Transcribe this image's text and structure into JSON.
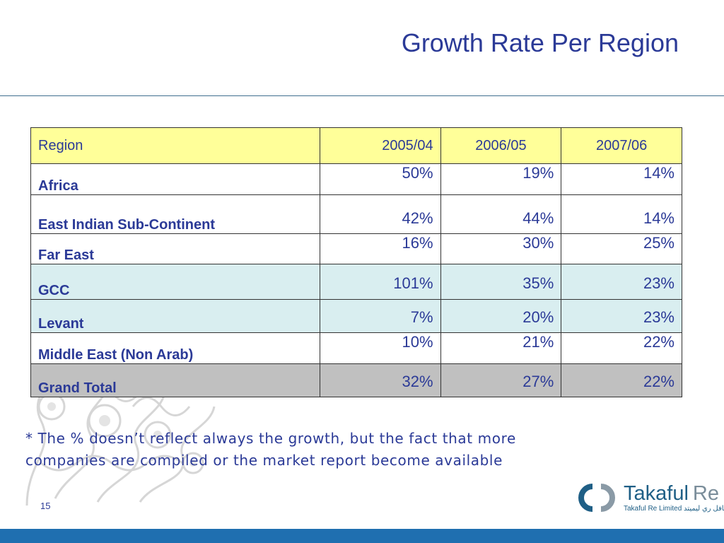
{
  "slide": {
    "title": "Growth Rate Per Region",
    "page_number": "15"
  },
  "table": {
    "headers": [
      "Region",
      "2005/04",
      "2006/05",
      "2007/06"
    ],
    "rows": [
      {
        "region": "Africa",
        "values": [
          "50%",
          "19%",
          "14%"
        ]
      },
      {
        "region": "East Indian Sub-Continent",
        "values": [
          "42%",
          "44%",
          "14%"
        ]
      },
      {
        "region": "Far East",
        "values": [
          "16%",
          "30%",
          "25%"
        ]
      },
      {
        "region": "GCC",
        "values": [
          "101%",
          "35%",
          "23%"
        ]
      },
      {
        "region": "Levant",
        "values": [
          "7%",
          "20%",
          "23%"
        ]
      },
      {
        "region": "Middle East (Non Arab)",
        "values": [
          "10%",
          "21%",
          "22%"
        ]
      },
      {
        "region": "Grand Total",
        "values": [
          "32%",
          "27%",
          "22%"
        ]
      }
    ]
  },
  "footnote": {
    "line1": "* The % doesn’t reflect always the growth, but the fact that more",
    "line2": "companies are compiled or the market report become available"
  },
  "logo": {
    "name": "Takaful",
    "suffix": "Re",
    "subtitle": "Takaful Re Limited تكافل ري ليميتد"
  },
  "colors": {
    "title": "#2b3a97",
    "header_bg": "#ffff99",
    "highlight_bg": "#d9eef0",
    "total_bg": "#c0c0c0",
    "bar": "#1f6fb0"
  }
}
